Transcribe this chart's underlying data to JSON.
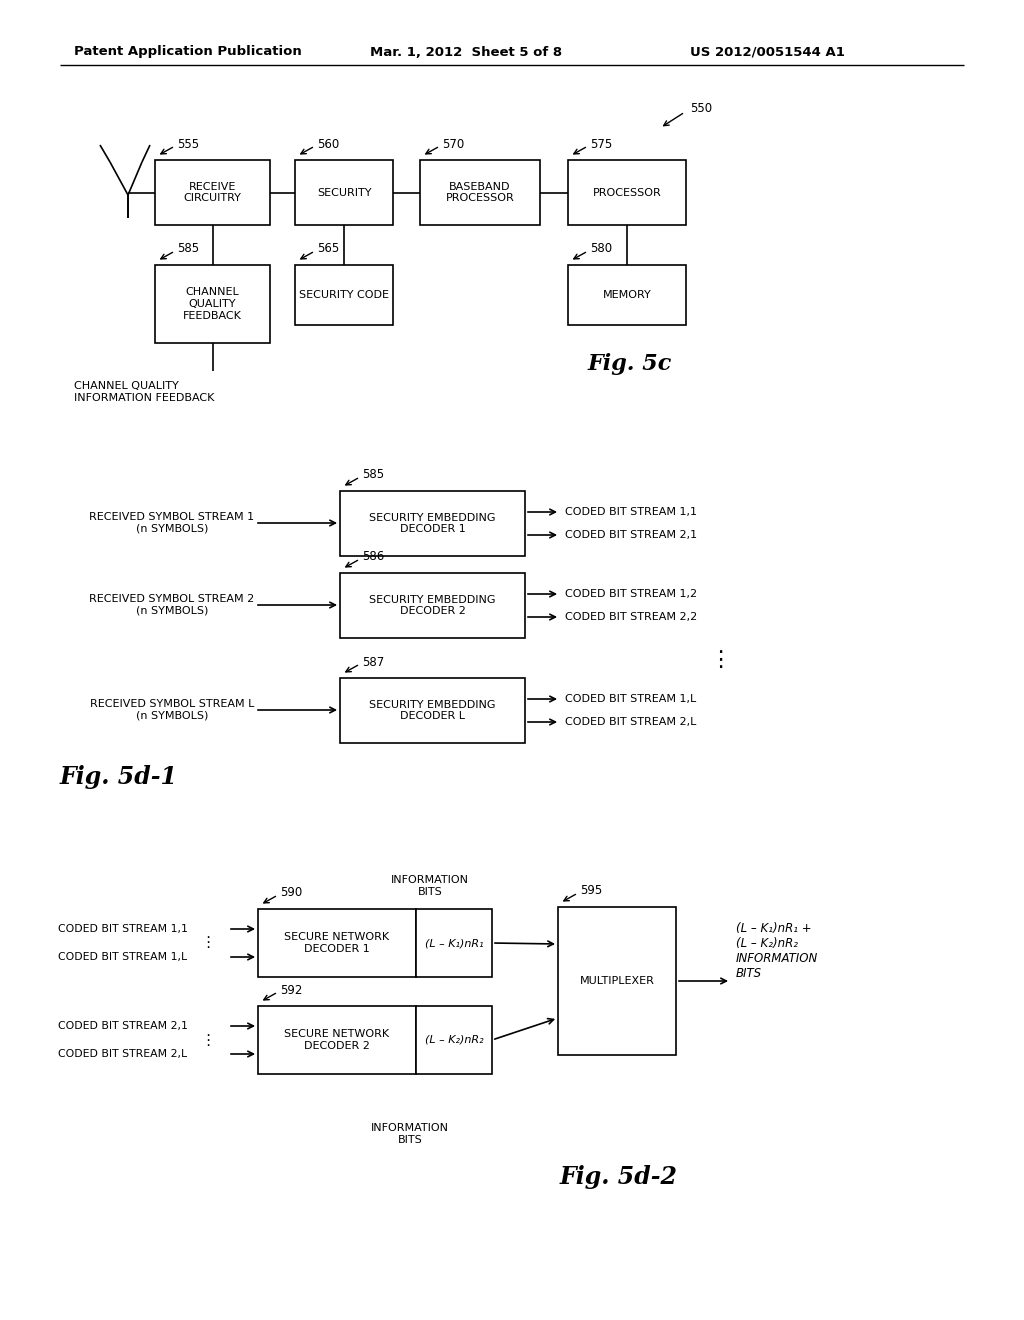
{
  "bg_color": "#ffffff",
  "header_line1": "Patent Application Publication",
  "header_line2": "Mar. 1, 2012  Sheet 5 of 8",
  "header_line3": "US 2012/0051544 A1",
  "fig5c_label": "Fig. 5c",
  "fig5d1_label": "Fig. 5d-1",
  "fig5d2_label": "Fig. 5d-2",
  "ref_550": "550",
  "ref_555": "555",
  "ref_560": "560",
  "ref_565": "565",
  "ref_570": "570",
  "ref_575": "575",
  "ref_580": "580",
  "ref_585_5c": "585",
  "ref_585": "585",
  "ref_586": "586",
  "ref_587": "587",
  "ref_590": "590",
  "ref_592": "592",
  "ref_595": "595",
  "box_receive": "RECEIVE\nCIRCUITRY",
  "box_security": "SECURITY",
  "box_baseband": "BASEBAND\nPROCESSOR",
  "box_processor": "PROCESSOR",
  "box_channel": "CHANNEL\nQUALITY\nFEEDBACK",
  "box_seccode": "SECURITY CODE",
  "box_memory": "MEMORY",
  "lbl_channel_feedback": "CHANNEL QUALITY\nINFORMATION FEEDBACK",
  "dec1_label": "SECURITY EMBEDDING\nDECODER 1",
  "dec2_label": "SECURITY EMBEDDING\nDECODER 2",
  "decL_label": "SECURITY EMBEDDING\nDECODER L",
  "in1": "RECEIVED SYMBOL STREAM 1\n(n SYMBOLS)",
  "in2": "RECEIVED SYMBOL STREAM 2\n(n SYMBOLS)",
  "inL": "RECEIVED SYMBOL STREAM L\n(n SYMBOLS)",
  "out1_1": "CODED BIT STREAM 1,1",
  "out2_1": "CODED BIT STREAM 2,1",
  "out1_2": "CODED BIT STREAM 1,2",
  "out2_2": "CODED BIT STREAM 2,2",
  "out1_L": "CODED BIT STREAM 1,L",
  "out2_L": "CODED BIT STREAM 2,L",
  "snd1_label": "SECURE NETWORK\nDECODER 1",
  "snd2_label": "SECURE NETWORK\nDECODER 2",
  "snd_in1_1": "CODED BIT STREAM 1,1",
  "snd_in1_L": "CODED BIT STREAM 1,L",
  "snd_in2_1": "CODED BIT STREAM 2,1",
  "snd_in2_L": "CODED BIT STREAM 2,L",
  "mux_label": "MULTIPLEXER",
  "info_bits": "INFORMATION\nBITS",
  "math_out1": "(L – K₁)nR₁",
  "math_out2": "(L – K₂)nR₂",
  "math_final": "(L – K₁)nR₁ +\n(L – K₂)nR₂\nINFORMATION\nBITS"
}
